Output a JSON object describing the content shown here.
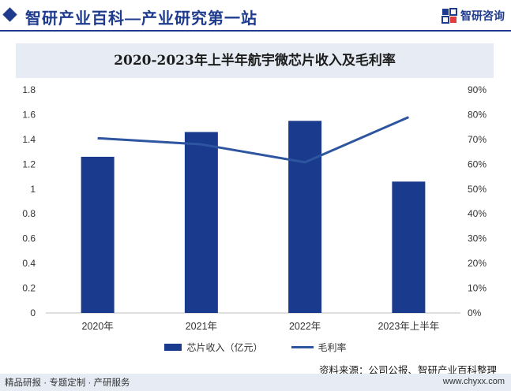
{
  "header": {
    "brand_title": "智研产业百科—产业研究第一站",
    "logo_text": "智研咨询"
  },
  "chart_data": {
    "type": "bar",
    "title": "2020-2023年上半年航宇微芯片收入及毛利率",
    "categories": [
      "2020年",
      "2021年",
      "2022年",
      "2023年上半年"
    ],
    "series": [
      {
        "name": "芯片收入（亿元）",
        "type": "bar",
        "axis": "left",
        "color": "#1a3b8d",
        "values": [
          1.26,
          1.46,
          1.55,
          1.06
        ]
      },
      {
        "name": "毛利率",
        "type": "line",
        "axis": "right",
        "color": "#2d55a0",
        "values": [
          70.5,
          68.0,
          60.8,
          79.0
        ]
      }
    ],
    "y_left": {
      "min": 0,
      "max": 1.8,
      "ticks": [
        "0",
        "0.2",
        "0.4",
        "0.6",
        "0.8",
        "1",
        "1.2",
        "1.4",
        "1.6",
        "1.8"
      ]
    },
    "y_right": {
      "min": 0,
      "max": 90,
      "ticks": [
        "0%",
        "10%",
        "20%",
        "30%",
        "40%",
        "50%",
        "60%",
        "70%",
        "80%",
        "90%"
      ]
    },
    "grid": false,
    "legend_position": "bottom"
  },
  "source": "资料来源：公司公报、智研产业百科整理",
  "footer": {
    "services": "精品研报 · 专题定制 · 产研服务",
    "website": "www.chyxx.com"
  }
}
